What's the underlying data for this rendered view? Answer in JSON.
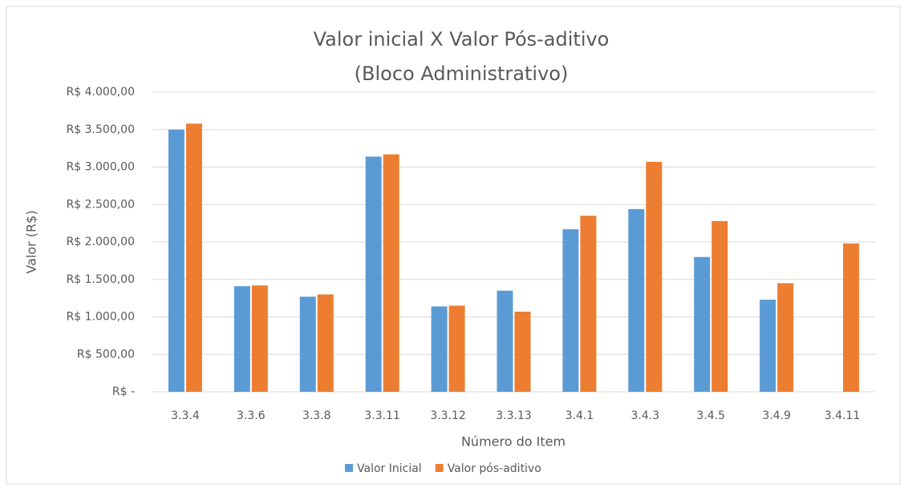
{
  "chart_data": {
    "type": "bar",
    "title": "Valor inicial X Valor Pós-aditivo",
    "subtitle": "(Bloco Administrativo)",
    "x_label": "Número do Item",
    "y_label": "Valor (R$)",
    "categories": [
      "3.3.4",
      "3.3.6",
      "3.3.8",
      "3.3.11",
      "3.3.12",
      "3.3.13",
      "3.4.1",
      "3.4.3",
      "3.4.5",
      "3.4.9",
      "3.4.11"
    ],
    "series": [
      {
        "name": "Valor Inicial",
        "color": "#5b9bd5",
        "values": [
          3500,
          1410,
          1270,
          3140,
          1140,
          1350,
          2170,
          2440,
          1800,
          1230,
          0
        ]
      },
      {
        "name": "Valor pós-aditivo",
        "color": "#ed7d31",
        "values": [
          3580,
          1420,
          1300,
          3170,
          1150,
          1070,
          2350,
          3070,
          2280,
          1450,
          1980
        ]
      }
    ],
    "ylim": [
      0,
      4000
    ],
    "yticks": [
      {
        "value": 0,
        "label": "R$ -"
      },
      {
        "value": 500,
        "label": "R$ 500,00"
      },
      {
        "value": 1000,
        "label": "R$ 1.000,00"
      },
      {
        "value": 1500,
        "label": "R$ 1.500,00"
      },
      {
        "value": 2000,
        "label": "R$ 2.000,00"
      },
      {
        "value": 2500,
        "label": "R$ 2.500,00"
      },
      {
        "value": 3000,
        "label": "R$ 3.000,00"
      },
      {
        "value": 3500,
        "label": "R$ 3.500,00"
      },
      {
        "value": 4000,
        "label": "R$ 4.000,00"
      }
    ],
    "grid": true,
    "legend": "bottom"
  }
}
